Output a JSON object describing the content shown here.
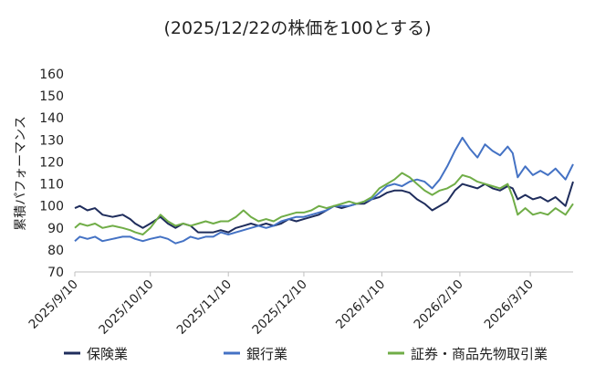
{
  "chart_data": {
    "type": "line",
    "title": "(2025/12/22の株価を100とする)",
    "ylabel": "累積パフォーマンス",
    "ylim": [
      70,
      160
    ],
    "yticks": [
      70,
      80,
      90,
      100,
      110,
      120,
      130,
      140,
      150,
      160
    ],
    "grid": false,
    "legend_position": "bottom",
    "x_range": [
      "2025-09-10",
      "2026-03-27"
    ],
    "x_ticks": [
      {
        "date": "2025-09-10",
        "label": "2025/9/10"
      },
      {
        "date": "2025-10-10",
        "label": "2025/10/10"
      },
      {
        "date": "2025-11-10",
        "label": "2025/11/10"
      },
      {
        "date": "2025-12-10",
        "label": "2025/12/10"
      },
      {
        "date": "2026-01-10",
        "label": "2026/1/10"
      },
      {
        "date": "2026-02-10",
        "label": "2026/2/10"
      },
      {
        "date": "2026-03-10",
        "label": "2026/3/10"
      }
    ],
    "series": [
      {
        "name": "保険業",
        "color": "#1f2d5c",
        "points": [
          [
            "2025-09-10",
            99
          ],
          [
            "2025-09-12",
            100
          ],
          [
            "2025-09-15",
            98
          ],
          [
            "2025-09-18",
            99
          ],
          [
            "2025-09-21",
            96
          ],
          [
            "2025-09-25",
            95
          ],
          [
            "2025-09-29",
            96
          ],
          [
            "2025-10-02",
            94
          ],
          [
            "2025-10-04",
            92
          ],
          [
            "2025-10-07",
            90
          ],
          [
            "2025-10-10",
            92
          ],
          [
            "2025-10-14",
            95
          ],
          [
            "2025-10-17",
            92
          ],
          [
            "2025-10-20",
            90
          ],
          [
            "2025-10-23",
            92
          ],
          [
            "2025-10-26",
            91
          ],
          [
            "2025-10-29",
            88
          ],
          [
            "2025-11-01",
            88
          ],
          [
            "2025-11-04",
            88
          ],
          [
            "2025-11-07",
            89
          ],
          [
            "2025-11-10",
            88
          ],
          [
            "2025-11-13",
            90
          ],
          [
            "2025-11-16",
            91
          ],
          [
            "2025-11-19",
            92
          ],
          [
            "2025-11-22",
            91
          ],
          [
            "2025-11-25",
            92
          ],
          [
            "2025-11-28",
            91
          ],
          [
            "2025-12-01",
            92
          ],
          [
            "2025-12-04",
            94
          ],
          [
            "2025-12-07",
            93
          ],
          [
            "2025-12-10",
            94
          ],
          [
            "2025-12-13",
            95
          ],
          [
            "2025-12-16",
            96
          ],
          [
            "2025-12-19",
            98
          ],
          [
            "2025-12-22",
            100
          ],
          [
            "2025-12-25",
            99
          ],
          [
            "2025-12-28",
            100
          ],
          [
            "2025-12-31",
            101
          ],
          [
            "2026-01-03",
            101
          ],
          [
            "2026-01-06",
            103
          ],
          [
            "2026-01-09",
            104
          ],
          [
            "2026-01-12",
            106
          ],
          [
            "2026-01-15",
            107
          ],
          [
            "2026-01-18",
            107
          ],
          [
            "2026-01-21",
            106
          ],
          [
            "2026-01-24",
            103
          ],
          [
            "2026-01-27",
            101
          ],
          [
            "2026-01-30",
            98
          ],
          [
            "2026-02-02",
            100
          ],
          [
            "2026-02-05",
            102
          ],
          [
            "2026-02-08",
            107
          ],
          [
            "2026-02-11",
            110
          ],
          [
            "2026-02-14",
            109
          ],
          [
            "2026-02-17",
            108
          ],
          [
            "2026-02-20",
            110
          ],
          [
            "2026-02-23",
            108
          ],
          [
            "2026-02-26",
            107
          ],
          [
            "2026-03-01",
            109
          ],
          [
            "2026-03-03",
            108
          ],
          [
            "2026-03-05",
            103
          ],
          [
            "2026-03-08",
            105
          ],
          [
            "2026-03-11",
            103
          ],
          [
            "2026-03-14",
            104
          ],
          [
            "2026-03-17",
            102
          ],
          [
            "2026-03-20",
            104
          ],
          [
            "2026-03-24",
            100
          ],
          [
            "2026-03-27",
            111
          ]
        ]
      },
      {
        "name": "銀行業",
        "color": "#4472c4",
        "points": [
          [
            "2025-09-10",
            84
          ],
          [
            "2025-09-12",
            86
          ],
          [
            "2025-09-15",
            85
          ],
          [
            "2025-09-18",
            86
          ],
          [
            "2025-09-21",
            84
          ],
          [
            "2025-09-25",
            85
          ],
          [
            "2025-09-29",
            86
          ],
          [
            "2025-10-02",
            86
          ],
          [
            "2025-10-04",
            85
          ],
          [
            "2025-10-07",
            84
          ],
          [
            "2025-10-10",
            85
          ],
          [
            "2025-10-14",
            86
          ],
          [
            "2025-10-17",
            85
          ],
          [
            "2025-10-20",
            83
          ],
          [
            "2025-10-23",
            84
          ],
          [
            "2025-10-26",
            86
          ],
          [
            "2025-10-29",
            85
          ],
          [
            "2025-11-01",
            86
          ],
          [
            "2025-11-04",
            86
          ],
          [
            "2025-11-07",
            88
          ],
          [
            "2025-11-10",
            87
          ],
          [
            "2025-11-13",
            88
          ],
          [
            "2025-11-16",
            89
          ],
          [
            "2025-11-19",
            90
          ],
          [
            "2025-11-22",
            91
          ],
          [
            "2025-11-25",
            90
          ],
          [
            "2025-11-28",
            91
          ],
          [
            "2025-12-01",
            93
          ],
          [
            "2025-12-04",
            94
          ],
          [
            "2025-12-07",
            95
          ],
          [
            "2025-12-10",
            95
          ],
          [
            "2025-12-13",
            96
          ],
          [
            "2025-12-16",
            97
          ],
          [
            "2025-12-19",
            98
          ],
          [
            "2025-12-22",
            100
          ],
          [
            "2025-12-25",
            100
          ],
          [
            "2025-12-28",
            100
          ],
          [
            "2025-12-31",
            101
          ],
          [
            "2026-01-03",
            102
          ],
          [
            "2026-01-06",
            103
          ],
          [
            "2026-01-09",
            106
          ],
          [
            "2026-01-12",
            109
          ],
          [
            "2026-01-15",
            110
          ],
          [
            "2026-01-18",
            109
          ],
          [
            "2026-01-21",
            111
          ],
          [
            "2026-01-24",
            112
          ],
          [
            "2026-01-27",
            111
          ],
          [
            "2026-01-30",
            108
          ],
          [
            "2026-02-02",
            112
          ],
          [
            "2026-02-05",
            118
          ],
          [
            "2026-02-08",
            125
          ],
          [
            "2026-02-11",
            131
          ],
          [
            "2026-02-14",
            126
          ],
          [
            "2026-02-17",
            122
          ],
          [
            "2026-02-20",
            128
          ],
          [
            "2026-02-23",
            125
          ],
          [
            "2026-02-26",
            123
          ],
          [
            "2026-03-01",
            127
          ],
          [
            "2026-03-03",
            124
          ],
          [
            "2026-03-05",
            113
          ],
          [
            "2026-03-08",
            118
          ],
          [
            "2026-03-11",
            114
          ],
          [
            "2026-03-14",
            116
          ],
          [
            "2026-03-17",
            114
          ],
          [
            "2026-03-20",
            117
          ],
          [
            "2026-03-24",
            112
          ],
          [
            "2026-03-27",
            119
          ]
        ]
      },
      {
        "name": "証券・商品先物取引業",
        "color": "#70ad47",
        "points": [
          [
            "2025-09-10",
            90
          ],
          [
            "2025-09-12",
            92
          ],
          [
            "2025-09-15",
            91
          ],
          [
            "2025-09-18",
            92
          ],
          [
            "2025-09-21",
            90
          ],
          [
            "2025-09-25",
            91
          ],
          [
            "2025-09-29",
            90
          ],
          [
            "2025-10-02",
            89
          ],
          [
            "2025-10-04",
            88
          ],
          [
            "2025-10-07",
            87
          ],
          [
            "2025-10-10",
            90
          ],
          [
            "2025-10-14",
            96
          ],
          [
            "2025-10-17",
            93
          ],
          [
            "2025-10-20",
            91
          ],
          [
            "2025-10-23",
            92
          ],
          [
            "2025-10-26",
            91
          ],
          [
            "2025-10-29",
            92
          ],
          [
            "2025-11-01",
            93
          ],
          [
            "2025-11-04",
            92
          ],
          [
            "2025-11-07",
            93
          ],
          [
            "2025-11-10",
            93
          ],
          [
            "2025-11-13",
            95
          ],
          [
            "2025-11-16",
            98
          ],
          [
            "2025-11-19",
            95
          ],
          [
            "2025-11-22",
            93
          ],
          [
            "2025-11-25",
            94
          ],
          [
            "2025-11-28",
            93
          ],
          [
            "2025-12-01",
            95
          ],
          [
            "2025-12-04",
            96
          ],
          [
            "2025-12-07",
            97
          ],
          [
            "2025-12-10",
            97
          ],
          [
            "2025-12-13",
            98
          ],
          [
            "2025-12-16",
            100
          ],
          [
            "2025-12-19",
            99
          ],
          [
            "2025-12-22",
            100
          ],
          [
            "2025-12-25",
            101
          ],
          [
            "2025-12-28",
            102
          ],
          [
            "2025-12-31",
            101
          ],
          [
            "2026-01-03",
            102
          ],
          [
            "2026-01-06",
            104
          ],
          [
            "2026-01-09",
            108
          ],
          [
            "2026-01-12",
            110
          ],
          [
            "2026-01-15",
            112
          ],
          [
            "2026-01-18",
            115
          ],
          [
            "2026-01-21",
            113
          ],
          [
            "2026-01-24",
            110
          ],
          [
            "2026-01-27",
            107
          ],
          [
            "2026-01-30",
            105
          ],
          [
            "2026-02-02",
            107
          ],
          [
            "2026-02-05",
            108
          ],
          [
            "2026-02-08",
            110
          ],
          [
            "2026-02-11",
            114
          ],
          [
            "2026-02-14",
            113
          ],
          [
            "2026-02-17",
            111
          ],
          [
            "2026-02-20",
            110
          ],
          [
            "2026-02-23",
            109
          ],
          [
            "2026-02-26",
            108
          ],
          [
            "2026-03-01",
            110
          ],
          [
            "2026-03-03",
            104
          ],
          [
            "2026-03-05",
            96
          ],
          [
            "2026-03-08",
            99
          ],
          [
            "2026-03-11",
            96
          ],
          [
            "2026-03-14",
            97
          ],
          [
            "2026-03-17",
            96
          ],
          [
            "2026-03-20",
            99
          ],
          [
            "2026-03-24",
            96
          ],
          [
            "2026-03-27",
            101
          ]
        ]
      }
    ]
  }
}
